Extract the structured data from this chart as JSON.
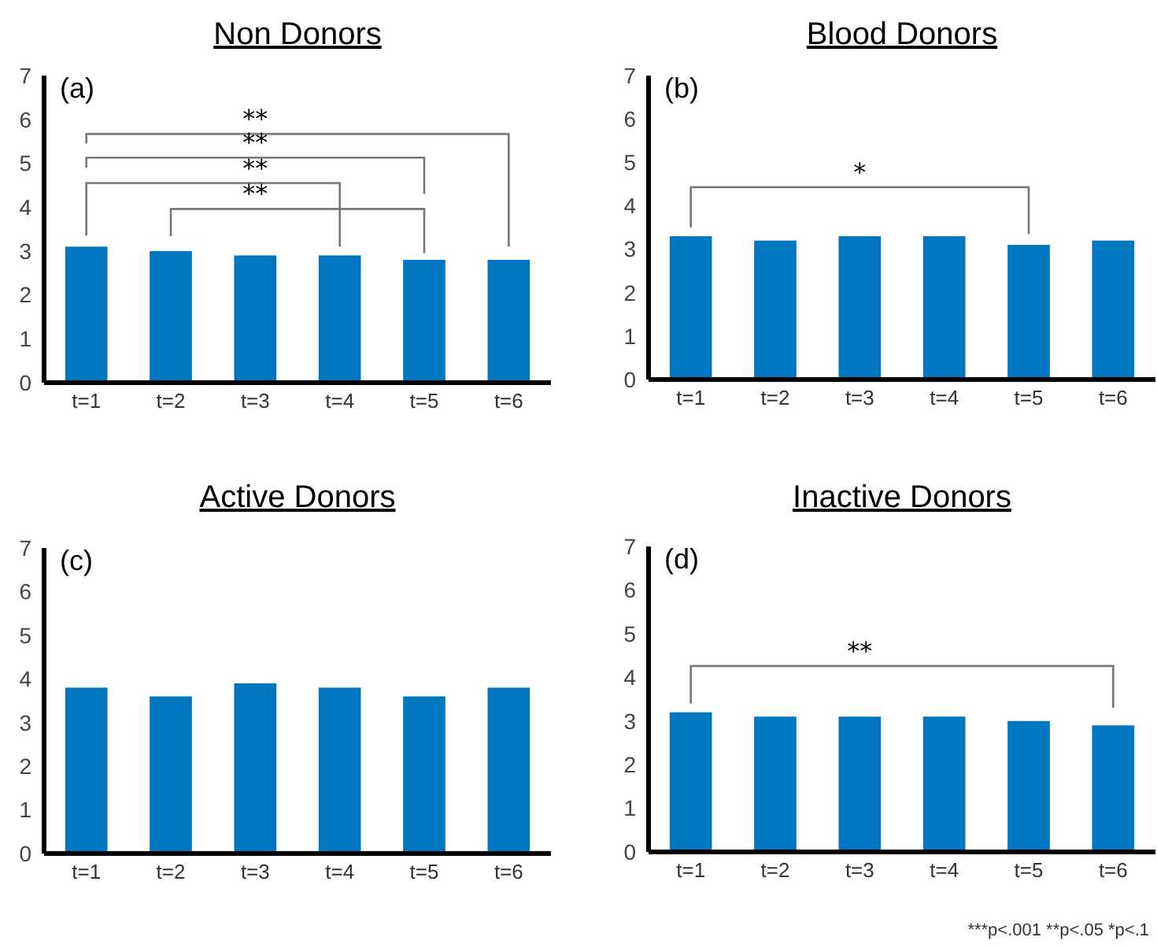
{
  "chart_data": [
    {
      "type": "bar",
      "title": "Non Donors",
      "categories": [
        "t=1",
        "t=2",
        "t=3",
        "t=4",
        "t=5",
        "t=6"
      ],
      "values": [
        3.1,
        3.0,
        2.9,
        2.9,
        2.8,
        2.8
      ],
      "color": "#0077c0",
      "ylim": [
        0,
        7
      ],
      "yticks": [
        0,
        1,
        2,
        3,
        4,
        5,
        6,
        7
      ],
      "grid": false,
      "annotations": [
        "(a)",
        "**",
        "**",
        "**",
        "**"
      ]
    },
    {
      "type": "bar",
      "title": "Blood Donors",
      "categories": [
        "t=1",
        "t=2",
        "t=3",
        "t=4",
        "t=5",
        "t=6"
      ],
      "values": [
        3.3,
        3.2,
        3.3,
        3.3,
        3.1,
        3.2
      ],
      "color": "#0077c0",
      "ylim": [
        0,
        7
      ],
      "yticks": [
        0,
        1,
        2,
        3,
        4,
        5,
        6,
        7
      ],
      "grid": false,
      "annotations": [
        "(b)",
        "*"
      ]
    },
    {
      "type": "bar",
      "title": "Active Donors",
      "categories": [
        "t=1",
        "t=2",
        "t=3",
        "t=4",
        "t=5",
        "t=6"
      ],
      "values": [
        3.8,
        3.6,
        3.9,
        3.8,
        3.6,
        3.8
      ],
      "color": "#0077c0",
      "ylim": [
        0,
        7
      ],
      "yticks": [
        0,
        1,
        2,
        3,
        4,
        5,
        6,
        7
      ],
      "grid": false,
      "annotations": [
        "(c)"
      ]
    },
    {
      "type": "bar",
      "title": "Inactive Donors",
      "categories": [
        "t=1",
        "t=2",
        "t=3",
        "t=4",
        "t=5",
        "t=6"
      ],
      "values": [
        3.2,
        3.1,
        3.1,
        3.1,
        3.0,
        2.9
      ],
      "color": "#0077c0",
      "ylim": [
        0,
        7
      ],
      "yticks": [
        0,
        1,
        2,
        3,
        4,
        5,
        6,
        7
      ],
      "grid": false,
      "annotations": [
        "(d)",
        "**",
        "***p<.001 **p<.05 *p<.1"
      ]
    }
  ]
}
